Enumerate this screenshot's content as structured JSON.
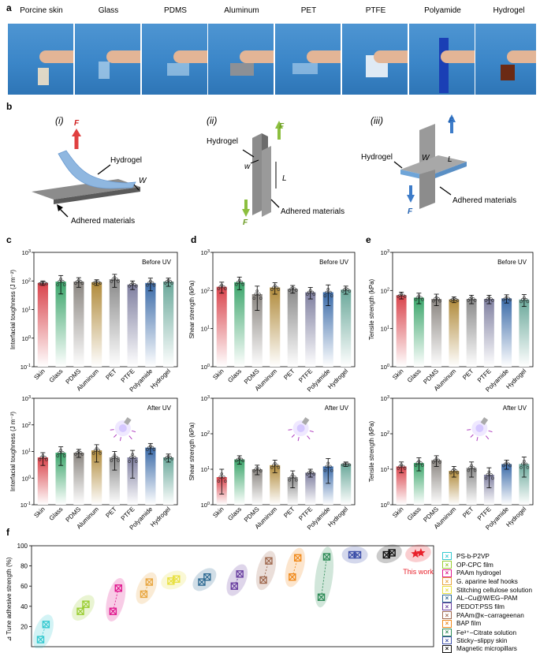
{
  "panel_a": {
    "label": "a",
    "photos": [
      "Porcine skin",
      "Glass",
      "PDMS",
      "Aluminum",
      "PET",
      "PTFE",
      "Polyamide",
      "Hydrogel"
    ]
  },
  "panel_b": {
    "label": "b",
    "schemes": [
      {
        "num": "(i)",
        "hydrogel": "Hydrogel",
        "adhered": "Adhered materials",
        "force": "F",
        "width": "W"
      },
      {
        "num": "(ii)",
        "hydrogel": "Hydrogel",
        "adhered": "Adhered materials",
        "force": "F",
        "width": "w",
        "length": "L"
      },
      {
        "num": "(iii)",
        "hydrogel": "Hydrogel",
        "adhered": "Adhered materials",
        "force": "F",
        "width": "W",
        "length": "L"
      }
    ]
  },
  "chart_data": [
    {
      "id": "c-top",
      "panel": "c",
      "type": "bar",
      "note": "Before UV",
      "ylabel": "Interfacial toughness (J m⁻²)",
      "ylim_log": [
        -1,
        3
      ],
      "categories": [
        "Skin",
        "Glass",
        "PDMS",
        "Aluminum",
        "PET",
        "PTFE",
        "Polyamide",
        "Hydrogel"
      ],
      "values": [
        85,
        95,
        95,
        90,
        115,
        75,
        85,
        95
      ],
      "err": [
        15,
        60,
        35,
        20,
        55,
        25,
        40,
        30
      ]
    },
    {
      "id": "c-bot",
      "panel": "c",
      "type": "bar",
      "note": "After UV",
      "ylabel": "Interfacial toughness (J m⁻²)",
      "ylim_log": [
        -1,
        3
      ],
      "categories": [
        "Skin",
        "Glass",
        "PDMS",
        "Aluminum",
        "PET",
        "PTFE",
        "Polyamide",
        "Hydrogel"
      ],
      "values": [
        6,
        9,
        9,
        11,
        6,
        6,
        14,
        6
      ],
      "err": [
        3,
        6,
        3,
        7,
        4,
        5,
        6,
        2
      ]
    },
    {
      "id": "d-top",
      "panel": "d",
      "type": "bar",
      "note": "Before UV",
      "ylabel": "Shear strength (kPa)",
      "ylim_log": [
        0,
        3
      ],
      "categories": [
        "Skin",
        "Glass",
        "PDMS",
        "Aluminum",
        "PET",
        "PTFE",
        "Polyamide",
        "Hydrogel"
      ],
      "values": [
        125,
        165,
        80,
        120,
        110,
        90,
        90,
        105
      ],
      "err": [
        40,
        60,
        50,
        40,
        25,
        30,
        50,
        25
      ]
    },
    {
      "id": "d-bot",
      "panel": "d",
      "type": "bar",
      "note": "After UV",
      "ylabel": "Shear strength (kPa)",
      "ylim_log": [
        0,
        3
      ],
      "categories": [
        "Skin",
        "Glass",
        "PDMS",
        "Aluminum",
        "PET",
        "PTFE",
        "Polyamide",
        "Hydrogel"
      ],
      "values": [
        6,
        19,
        10,
        13,
        6,
        8,
        12,
        14
      ],
      "err": [
        4,
        5,
        3,
        5,
        3,
        2,
        8,
        2
      ]
    },
    {
      "id": "e-top",
      "panel": "e",
      "type": "bar",
      "note": "Before UV",
      "ylabel": "Tensile strength (kPa)",
      "ylim_log": [
        0,
        3
      ],
      "categories": [
        "Skin",
        "Glass",
        "PDMS",
        "Aluminum",
        "PET",
        "PTFE",
        "Polyamide",
        "Hydrogel"
      ],
      "values": [
        75,
        65,
        60,
        58,
        60,
        60,
        62,
        58
      ],
      "err": [
        15,
        20,
        20,
        10,
        15,
        15,
        15,
        20
      ]
    },
    {
      "id": "e-bot",
      "panel": "e",
      "type": "bar",
      "note": "After UV",
      "ylabel": "Tensile strength (kPa)",
      "ylim_log": [
        0,
        3
      ],
      "categories": [
        "Skin",
        "Glass",
        "PDMS",
        "Aluminum",
        "PET",
        "PTFE",
        "Polyamide",
        "Hydrogel"
      ],
      "values": [
        12,
        15,
        18,
        9,
        11,
        7,
        14,
        14
      ],
      "err": [
        4,
        6,
        6,
        3,
        5,
        4,
        4,
        8
      ]
    },
    {
      "id": "f",
      "panel": "f",
      "type": "scatter",
      "ylabel": "⊿ Tune adhesive strength (%)",
      "ylim": [
        0,
        100
      ],
      "yticks": [
        20,
        40,
        60,
        80,
        100
      ],
      "series": [
        {
          "name": "PS-b-P2VP",
          "x": [
            0.5,
            0.8
          ],
          "y": [
            7,
            22
          ],
          "color": "#35c9d0"
        },
        {
          "name": "OP-CPC film",
          "x": [
            2.7,
            3.0
          ],
          "y": [
            35,
            42
          ],
          "color": "#9acd32"
        },
        {
          "name": "PAAm hydrogel",
          "x": [
            4.5,
            4.8
          ],
          "y": [
            35,
            58
          ],
          "color": "#e0198f"
        },
        {
          "name": "G. aparine leaf hooks",
          "x": [
            6.2,
            6.5
          ],
          "y": [
            52,
            64
          ],
          "color": "#e8a640"
        },
        {
          "name": "Stitching cellulose solution",
          "x": [
            7.7,
            8.0
          ],
          "y": [
            65,
            67
          ],
          "color": "#e8e040"
        },
        {
          "name": "AL−Cu@W/EG−PAM",
          "x": [
            9.4,
            9.7
          ],
          "y": [
            64,
            69
          ],
          "color": "#2e6a92"
        },
        {
          "name": "PEDOT:PSS film",
          "x": [
            11.2,
            11.5
          ],
          "y": [
            60,
            72
          ],
          "color": "#6a3fa0"
        },
        {
          "name": "PAAm@κ−carrageenan",
          "x": [
            12.8,
            13.1
          ],
          "y": [
            66,
            85
          ],
          "color": "#a06a50"
        },
        {
          "name": "BAP film",
          "x": [
            14.4,
            14.7
          ],
          "y": [
            69,
            88
          ],
          "color": "#f08a1c"
        },
        {
          "name": "Fe³⁺−Citrate solution",
          "x": [
            16.0,
            16.3
          ],
          "y": [
            49,
            89
          ],
          "color": "#2e8b57"
        },
        {
          "name": "Sticky−slippy skin",
          "x": [
            17.7,
            18.0
          ],
          "y": [
            91,
            91
          ],
          "color": "#3b4ea8"
        },
        {
          "name": "Magnetic micropillars",
          "x": [
            19.6,
            19.9
          ],
          "y": [
            91,
            93
          ],
          "color": "#111111"
        },
        {
          "name": "This work",
          "x": [
            21.2,
            21.5
          ],
          "y": [
            92,
            93
          ],
          "color": "#e8202a"
        }
      ],
      "annotation": "This work"
    }
  ],
  "panel_f": {
    "label": "f"
  },
  "panels": {
    "c": "c",
    "d": "d",
    "e": "e"
  }
}
